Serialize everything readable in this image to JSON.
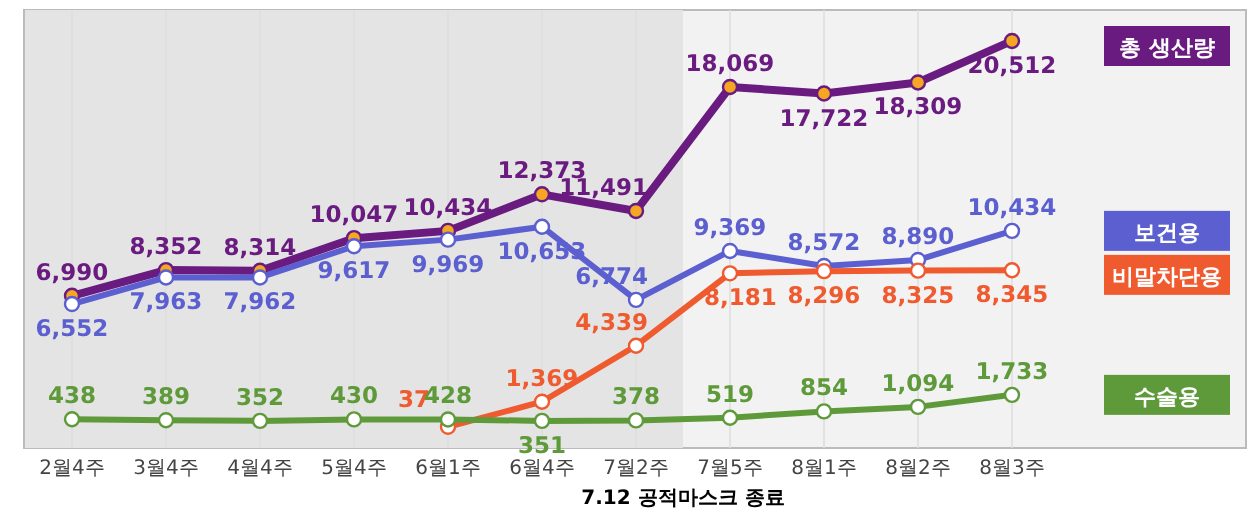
{
  "chart_data": {
    "type": "line",
    "categories": [
      "2월4주",
      "3월4주",
      "4월4주",
      "5월4주",
      "6월1주",
      "6월4주",
      "7월2주",
      "7월5주",
      "8월1주",
      "8월2주",
      "8월3주"
    ],
    "series": [
      {
        "name": "총 생산량",
        "color": "#6a1b7f",
        "values": [
          6990,
          8352,
          8314,
          10047,
          10434,
          12373,
          11491,
          18069,
          17722,
          18309,
          20512
        ],
        "value_labels": [
          "6,990",
          "8,352",
          "8,314",
          "10,047",
          "10,434",
          "12,373",
          "11,491",
          "18,069",
          "17,722",
          "18,309",
          "20,512"
        ]
      },
      {
        "name": "보건용",
        "color": "#5b5fcf",
        "values": [
          6552,
          7963,
          7962,
          9617,
          9969,
          10653,
          6774,
          9369,
          8572,
          8890,
          10434
        ],
        "value_labels": [
          "6,552",
          "7,963",
          "7,962",
          "9,617",
          "9,969",
          "10,653",
          "6,774",
          "9,369",
          "8,572",
          "8,890",
          "10,434"
        ]
      },
      {
        "name": "비말차단용",
        "color": "#ef5a2e",
        "values": [
          null,
          null,
          null,
          null,
          37,
          1369,
          4339,
          8181,
          8296,
          8325,
          8345
        ],
        "value_labels": [
          null,
          null,
          null,
          null,
          "37",
          "1,369",
          "4,339",
          "8,181",
          "8,296",
          "8,325",
          "8,345"
        ]
      },
      {
        "name": "수술용",
        "color": "#5f9a3a",
        "values": [
          438,
          389,
          352,
          430,
          428,
          351,
          378,
          519,
          854,
          1094,
          1733
        ],
        "value_labels": [
          "438",
          "389",
          "352",
          "430",
          "428",
          "351",
          "378",
          "519",
          "854",
          "1,094",
          "1,733"
        ]
      }
    ],
    "bands": [
      {
        "axis": "x",
        "from": "2월4주",
        "to": "7월2주",
        "label": "7.12 공적마스크 종료",
        "color": "#e4e4e4"
      }
    ],
    "legend": "right",
    "grid": "x",
    "marker": "circle",
    "line_style": "solid"
  }
}
